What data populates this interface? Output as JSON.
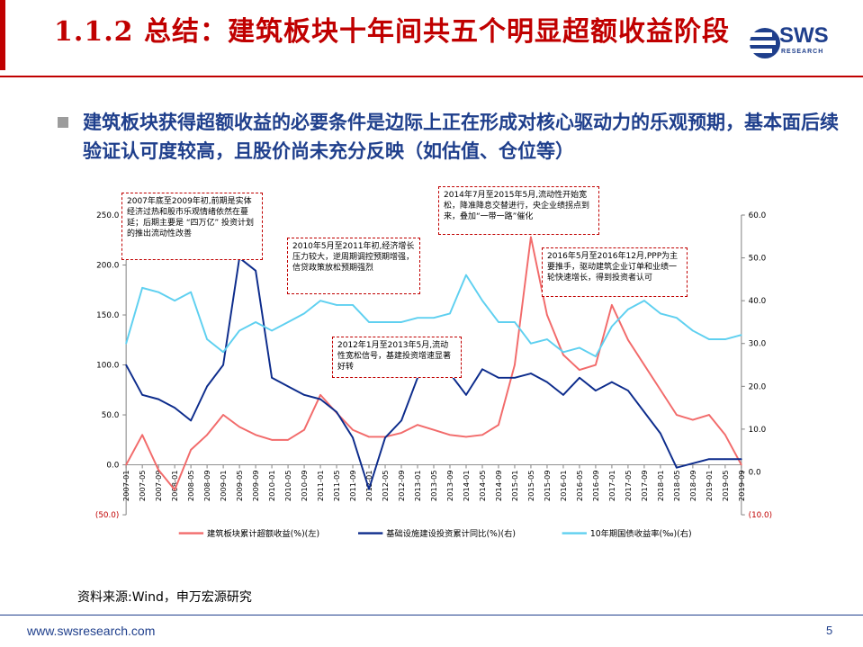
{
  "header": {
    "title": "1.1.2 总结：建筑板块十年间共五个明显超额收益阶段",
    "logo_text": "SWS",
    "logo_sub": "RESEARCH"
  },
  "headline": "建筑板块获得超额收益的必要条件是边际上正在形成对核心驱动力的乐观预期，基本面后续验证认可度较高，且股价尚未充分反映（如估值、仓位等）",
  "annotations": [
    "2007年底至2009年初,前期是实体经济过热和股市乐观情绪依然在蔓延；后期主要是 “四万亿” 投资计划的推出流动性改善",
    "2010年5月至2011年初,经济增长压力较大，逆周期调控预期增强，信贷政策放松预期强烈",
    "2012年1月至2013年5月,流动性宽松信号，基建投资增速显著好转",
    "2014年7月至2015年5月,流动性开始宽松，降准降息交替进行，央企业绩拐点到来，叠加“一带一路”催化",
    "2016年5月至2016年12月,PPP为主要推手，驱动建筑企业订单和业绩一轮快速增长，得到投资者认可"
  ],
  "source": "资料来源:Wind，申万宏源研究",
  "footer": {
    "url": "www.swsresearch.com",
    "page": "5"
  },
  "chart_data": {
    "type": "line",
    "x": [
      "2007-01",
      "2007-05",
      "2007-09",
      "2008-01",
      "2008-05",
      "2008-09",
      "2009-01",
      "2009-05",
      "2009-09",
      "2010-01",
      "2010-05",
      "2010-09",
      "2011-01",
      "2011-05",
      "2011-09",
      "2012-01",
      "2012-05",
      "2012-09",
      "2013-01",
      "2013-05",
      "2013-09",
      "2014-01",
      "2014-05",
      "2014-09",
      "2015-01",
      "2015-05",
      "2015-09",
      "2016-01",
      "2016-05",
      "2016-09",
      "2017-01",
      "2017-05",
      "2017-09",
      "2018-01",
      "2018-05",
      "2018-09",
      "2019-01",
      "2019-05",
      "2019-09"
    ],
    "left_axis": {
      "ticks": [
        "250.0",
        "200.0",
        "150.0",
        "100.0",
        "50.0",
        "0.0",
        "(50.0)"
      ],
      "ylim": [
        -50,
        250
      ]
    },
    "right_axis": {
      "ticks": [
        "60.0",
        "50.0",
        "40.0",
        "30.0",
        "20.0",
        "10.0",
        "0.0",
        "(10.0)"
      ],
      "ylim": [
        -10,
        60
      ]
    },
    "series": [
      {
        "name": "建筑板块累计超额收益(%)(左)",
        "axis": "left",
        "color": "#f26b6b",
        "values": [
          0,
          30,
          -5,
          -25,
          15,
          30,
          50,
          38,
          30,
          25,
          25,
          35,
          70,
          52,
          35,
          28,
          28,
          32,
          40,
          35,
          30,
          28,
          30,
          40,
          100,
          228,
          150,
          110,
          95,
          100,
          160,
          125,
          100,
          75,
          50,
          45,
          50,
          30,
          0
        ]
      },
      {
        "name": "基础设施建设投资累计同比(%)(右)",
        "axis": "right",
        "color": "#0d2c8c",
        "values": [
          25,
          18,
          17,
          15,
          12,
          20,
          25,
          50,
          47,
          22,
          20,
          18,
          17,
          14,
          8,
          -4,
          8,
          12,
          22,
          24,
          23,
          18,
          24,
          22,
          22,
          23,
          21,
          18,
          22,
          19,
          21,
          19,
          14,
          9,
          1,
          2,
          3,
          3,
          3
        ]
      },
      {
        "name": "10年期国债收益率(‰)(右)",
        "axis": "right",
        "color": "#5fd0f0",
        "values": [
          30,
          43,
          42,
          40,
          42,
          31,
          28,
          33,
          35,
          33,
          35,
          37,
          40,
          39,
          39,
          35,
          35,
          35,
          36,
          36,
          37,
          46,
          40,
          35,
          35,
          30,
          31,
          28,
          29,
          27,
          34,
          38,
          40,
          37,
          36,
          33,
          31,
          31,
          32
        ]
      }
    ],
    "grid": false,
    "legend": "bottom"
  }
}
